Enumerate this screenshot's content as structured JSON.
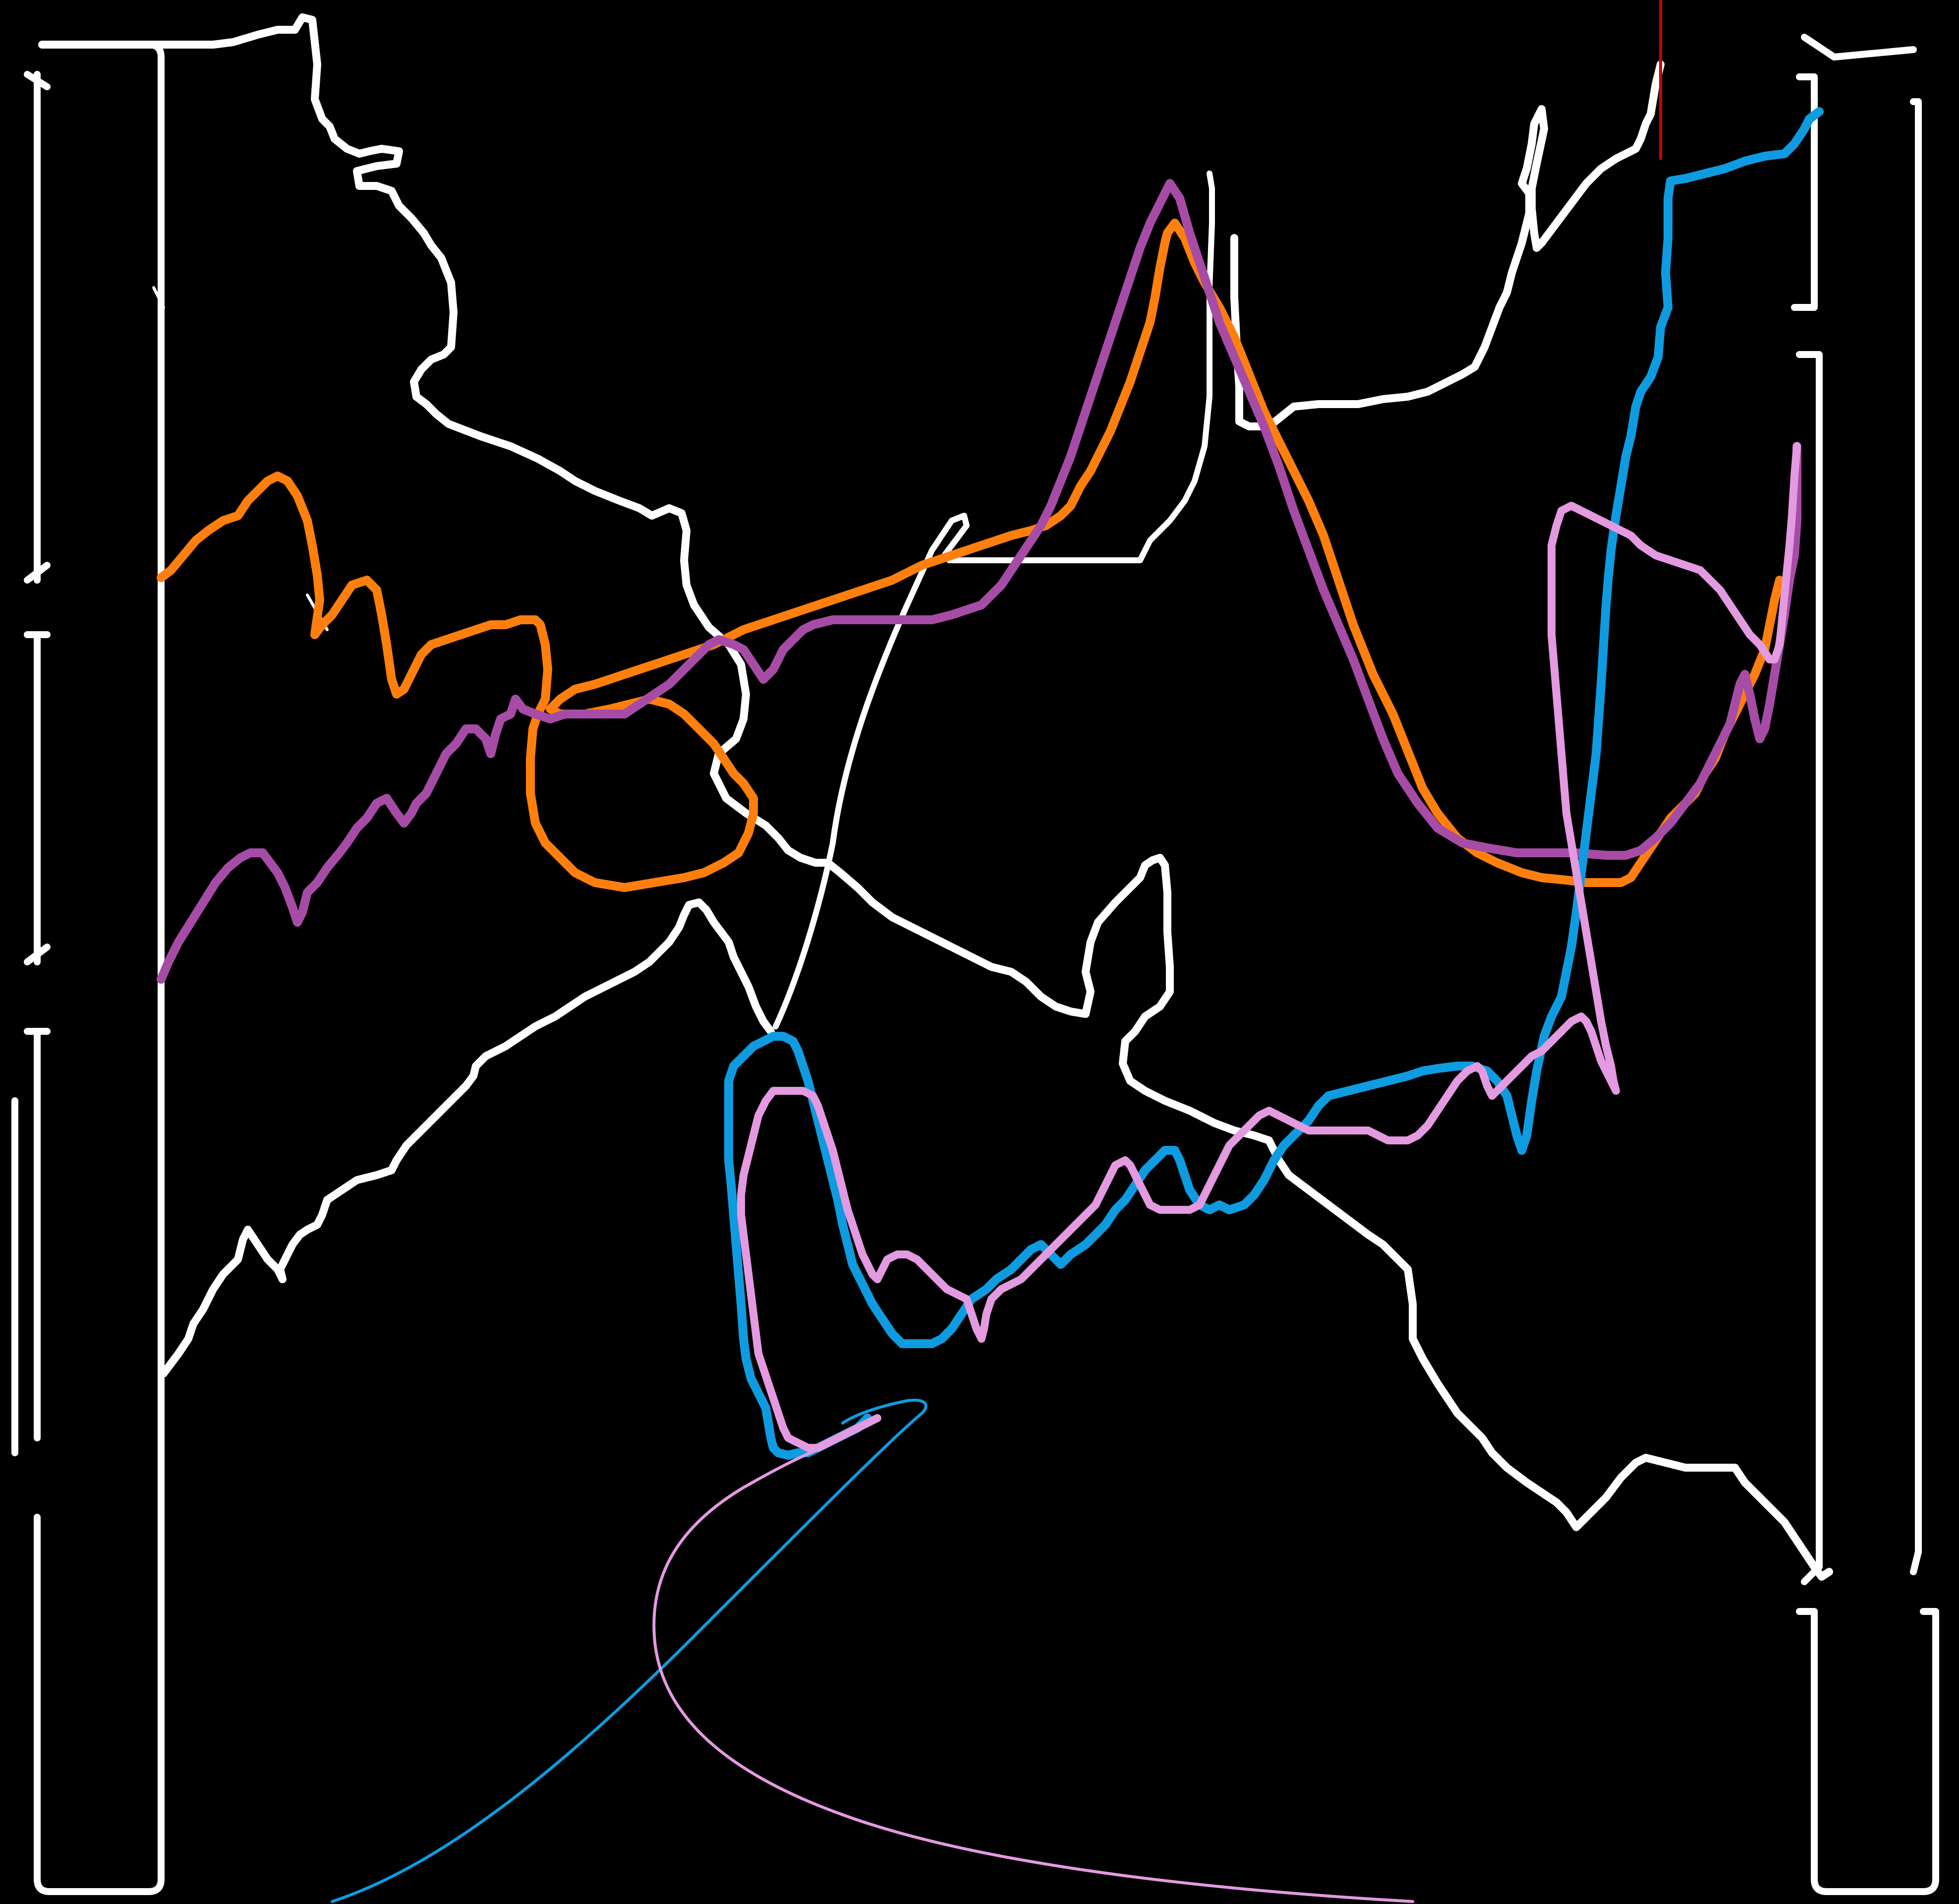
{
  "canvas": {
    "background": "#000000"
  },
  "colors": {
    "white": "#ffffff",
    "orange": "#ff7f0e",
    "purple": "#a64ca6",
    "blue": "#0f9be0",
    "pink": "#e39ae0",
    "red": "#cc0000"
  },
  "strokes": [
    {
      "name": "white-stroke-1",
      "color": "white"
    },
    {
      "name": "white-stroke-2",
      "color": "white"
    },
    {
      "name": "white-stroke-3",
      "color": "white"
    },
    {
      "name": "white-stroke-4",
      "color": "white"
    },
    {
      "name": "white-stroke-5",
      "color": "white"
    },
    {
      "name": "white-stroke-6",
      "color": "white"
    },
    {
      "name": "orange-stroke",
      "color": "orange"
    },
    {
      "name": "purple-stroke",
      "color": "purple"
    },
    {
      "name": "blue-stroke",
      "color": "blue"
    },
    {
      "name": "pink-stroke",
      "color": "pink"
    },
    {
      "name": "blue-curve",
      "color": "blue"
    },
    {
      "name": "pink-curve",
      "color": "pink"
    },
    {
      "name": "red-mark",
      "color": "red"
    }
  ]
}
